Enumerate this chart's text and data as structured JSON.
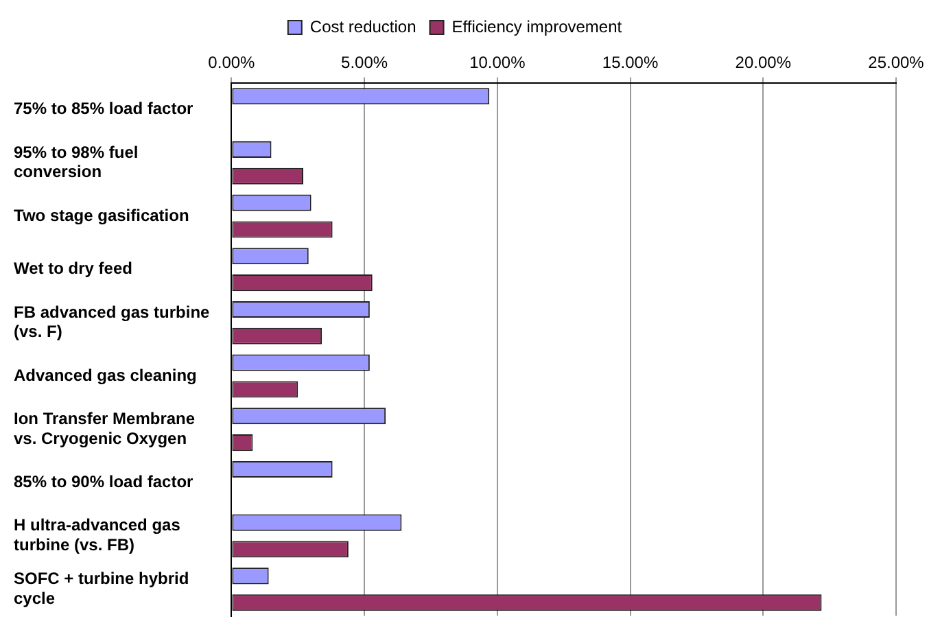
{
  "chart_data": {
    "type": "bar",
    "orientation": "horizontal",
    "categories": [
      "75% to 85% load factor",
      "95% to 98% fuel conversion",
      "Two stage gasification",
      "Wet to dry feed",
      "FB advanced gas turbine (vs. F)",
      "Advanced gas cleaning",
      "Ion Transfer Membrane vs. Cryogenic Oxygen",
      "85% to 90% load factor",
      "H ultra-advanced gas turbine (vs. FB)",
      "SOFC + turbine hybrid cycle"
    ],
    "series": [
      {
        "name": "Cost reduction",
        "color": "#9999ff",
        "values": [
          9.7,
          1.5,
          3.0,
          2.9,
          5.2,
          5.2,
          5.8,
          3.8,
          6.4,
          1.4
        ]
      },
      {
        "name": "Efficiency improvement",
        "color": "#993366",
        "values": [
          null,
          2.7,
          3.8,
          5.3,
          3.4,
          2.5,
          0.8,
          null,
          4.4,
          22.2
        ]
      }
    ],
    "xlim": [
      0,
      25
    ],
    "xticks": [
      {
        "value": 0,
        "label": "0.00%"
      },
      {
        "value": 5,
        "label": "5.00%"
      },
      {
        "value": 10,
        "label": "10.00%"
      },
      {
        "value": 15,
        "label": "15.00%"
      },
      {
        "value": 20,
        "label": "20.00%"
      },
      {
        "value": 25,
        "label": "25.00%"
      }
    ],
    "grid": "x",
    "legend": "top"
  }
}
